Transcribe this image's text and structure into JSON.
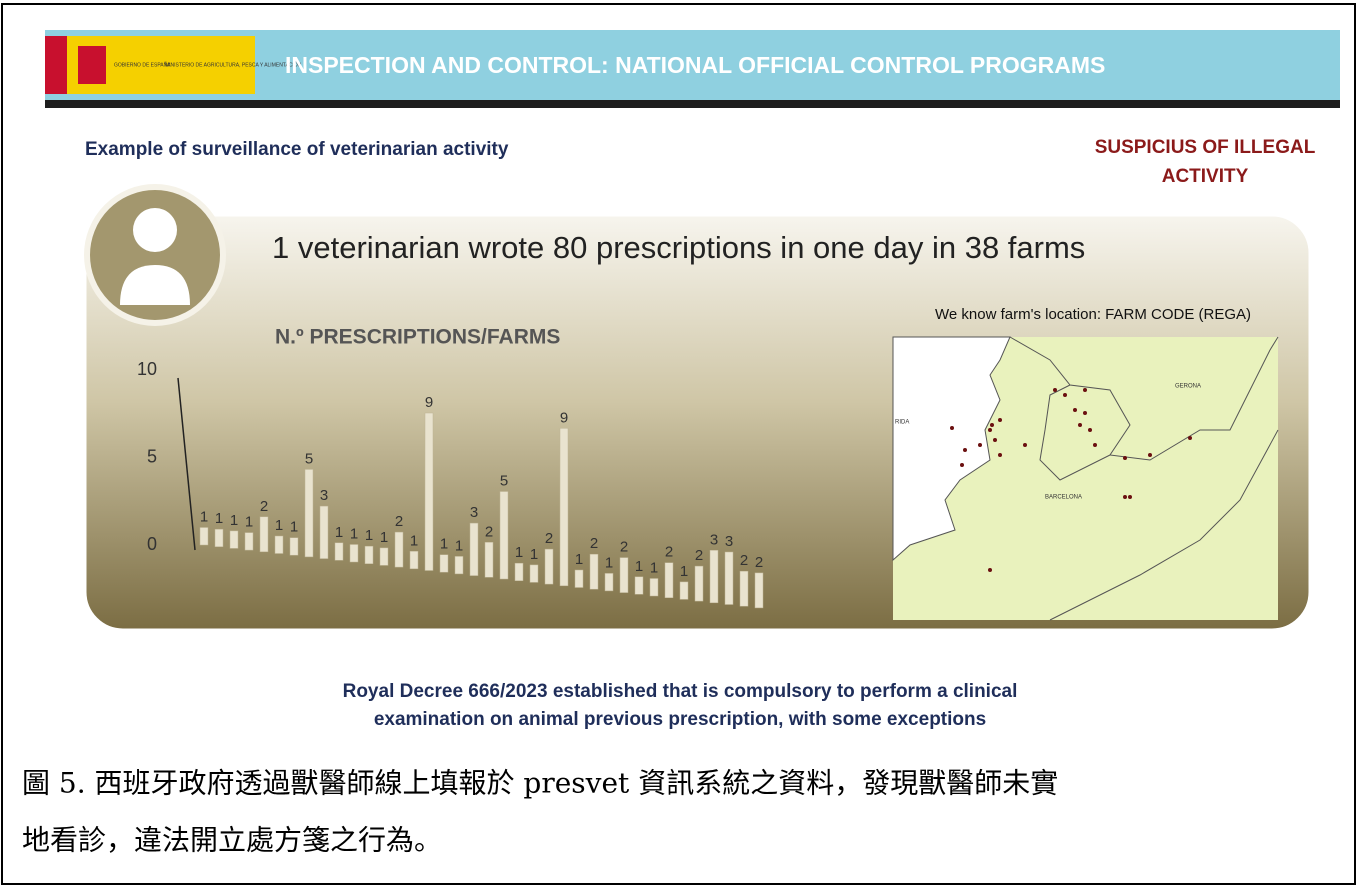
{
  "header": {
    "logo": [
      "GOBIERNO DE ESPAÑA",
      "MINISTERIO DE AGRICULTURA, PESCA Y ALIMENTACIÓN"
    ],
    "title": "INSPECTION AND CONTROL: NATIONAL OFFICIAL CONTROL PROGRAMS"
  },
  "subtitle": "Example of surveillance of veterinarian activity",
  "alert": [
    "SUSPICIUS OF ILLEGAL",
    "ACTIVITY"
  ],
  "headline": "1 veterinarian wrote 80 prescriptions in one day in 38 farms",
  "chart_data": {
    "type": "bar",
    "title": "N.º PRESCRIPTIONS/FARMS",
    "values": [
      1,
      1,
      1,
      1,
      2,
      1,
      1,
      5,
      3,
      1,
      1,
      1,
      1,
      2,
      1,
      9,
      1,
      1,
      3,
      2,
      5,
      1,
      1,
      2,
      9,
      1,
      2,
      1,
      2,
      1,
      1,
      2,
      1,
      2,
      3,
      3,
      2,
      2
    ],
    "color": "#e9e3cf",
    "ylim": [
      0,
      10
    ],
    "yticks": [
      0,
      5,
      10
    ]
  },
  "map": {
    "caption": "We know farm's location: FARM CODE (REGA)",
    "labels": [
      "GERONA",
      "BARCELONA",
      "RIDA"
    ]
  },
  "footer": [
    "Royal Decree 666/2023 established that is compulsory to perform a clinical",
    "examination on animal previous prescription, with some exceptions"
  ],
  "caption": [
    "圖 5. 西班牙政府透過獸醫師線上填報於 presvet 資訊系統之資料，發現獸醫師未實",
    "地看診，違法開立處方箋之行為。"
  ]
}
